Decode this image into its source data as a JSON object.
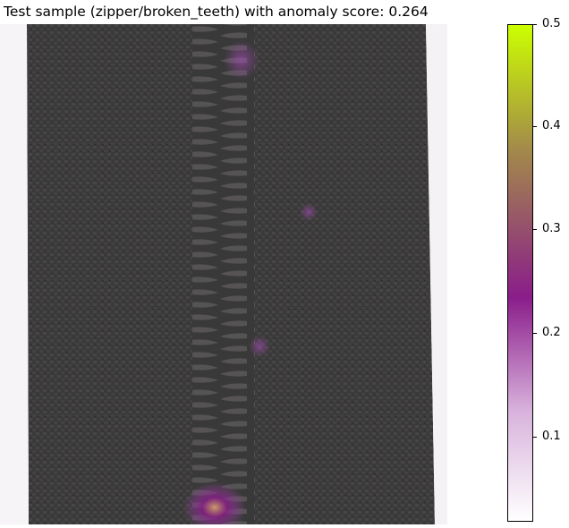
{
  "title": "Test sample (zipper/broken_teeth) with anomaly score: 0.264",
  "image": {
    "subject": "zipper with anomaly heatmap overlay",
    "fabric_color": "#3b3a3a",
    "teeth_color": "#4a4848",
    "heat_colors": [
      "#7a1f8a",
      "#a64db8",
      "#d4a06a"
    ]
  },
  "colorbar": {
    "ticks": [
      "0.5",
      "0.4",
      "0.3",
      "0.2",
      "0.1"
    ],
    "colors": [
      "#ccff00",
      "#a38a4a",
      "#8a1d8a",
      "#d9b3dd",
      "#ffffff"
    ]
  }
}
